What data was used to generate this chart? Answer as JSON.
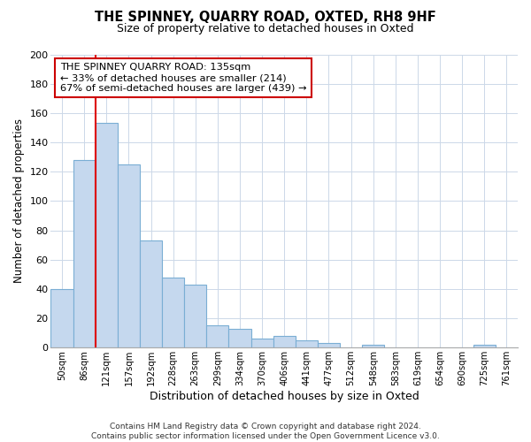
{
  "title": "THE SPINNEY, QUARRY ROAD, OXTED, RH8 9HF",
  "subtitle": "Size of property relative to detached houses in Oxted",
  "xlabel": "Distribution of detached houses by size in Oxted",
  "ylabel": "Number of detached properties",
  "bar_labels": [
    "50sqm",
    "86sqm",
    "121sqm",
    "157sqm",
    "192sqm",
    "228sqm",
    "263sqm",
    "299sqm",
    "334sqm",
    "370sqm",
    "406sqm",
    "441sqm",
    "477sqm",
    "512sqm",
    "548sqm",
    "583sqm",
    "619sqm",
    "654sqm",
    "690sqm",
    "725sqm",
    "761sqm"
  ],
  "bar_values": [
    40,
    128,
    153,
    125,
    73,
    48,
    43,
    15,
    13,
    6,
    8,
    5,
    3,
    0,
    2,
    0,
    0,
    0,
    0,
    2,
    0
  ],
  "bar_color": "#c5d8ee",
  "bar_edge_color": "#7aaed4",
  "vline_color": "#dd0000",
  "vline_index": 2,
  "annotation_text": "THE SPINNEY QUARRY ROAD: 135sqm\n← 33% of detached houses are smaller (214)\n67% of semi-detached houses are larger (439) →",
  "annotation_box_edgecolor": "#cc0000",
  "ylim": [
    0,
    200
  ],
  "yticks": [
    0,
    20,
    40,
    60,
    80,
    100,
    120,
    140,
    160,
    180,
    200
  ],
  "footer_text": "Contains HM Land Registry data © Crown copyright and database right 2024.\nContains public sector information licensed under the Open Government Licence v3.0.",
  "grid_color": "#ccd8e8",
  "background_color": "#ffffff",
  "title_fontsize": 10.5,
  "subtitle_fontsize": 9,
  "footer_fontsize": 6.5
}
